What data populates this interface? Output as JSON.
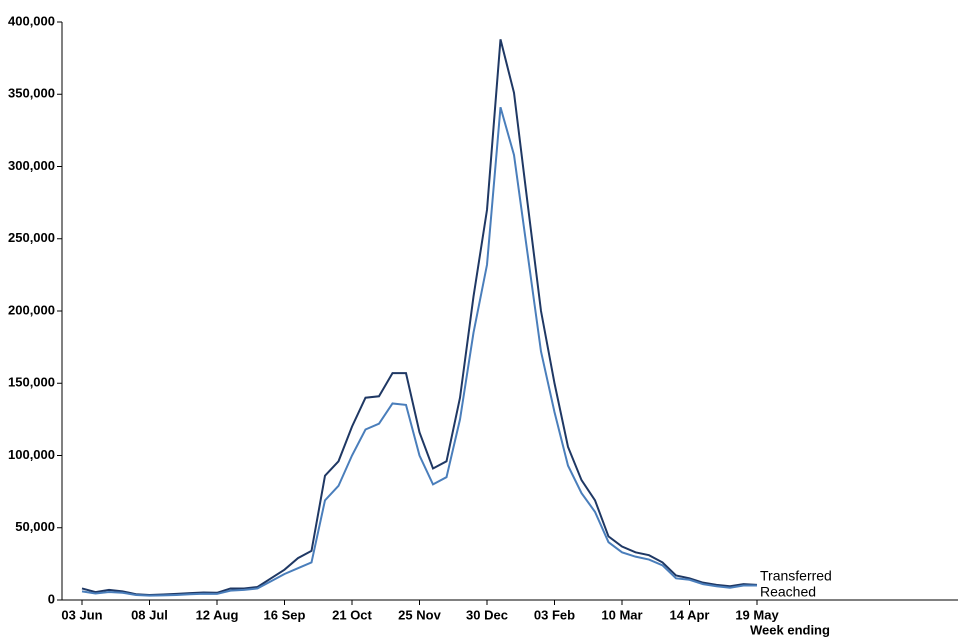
{
  "chart_data": {
    "type": "line",
    "x_label": "Week ending",
    "categories": [
      "03 Jun",
      null,
      null,
      null,
      null,
      "08 Jul",
      null,
      null,
      null,
      null,
      "12 Aug",
      null,
      null,
      null,
      null,
      "16 Sep",
      null,
      null,
      null,
      null,
      "21 Oct",
      null,
      null,
      null,
      null,
      "25 Nov",
      null,
      null,
      null,
      null,
      "30 Dec",
      null,
      null,
      null,
      null,
      "03 Feb",
      null,
      null,
      null,
      null,
      "10 Mar",
      null,
      null,
      null,
      null,
      "14 Apr",
      null,
      null,
      null,
      null,
      "19 May"
    ],
    "series": [
      {
        "name": "Transferred",
        "color": "#1f3864",
        "values": [
          8000,
          5500,
          7000,
          6000,
          4000,
          3500,
          3800,
          4200,
          4800,
          5200,
          5000,
          8000,
          8000,
          9000,
          15000,
          21000,
          29000,
          34000,
          86000,
          96000,
          120000,
          140000,
          141000,
          157000,
          157000,
          116000,
          91000,
          96000,
          140000,
          210000,
          270000,
          388000,
          351000,
          275000,
          200000,
          150000,
          106000,
          83000,
          69000,
          44000,
          37000,
          33000,
          31000,
          26000,
          17000,
          15000,
          12000,
          10500,
          9500,
          11000,
          10500
        ]
      },
      {
        "name": "Reached",
        "color": "#4a7ebb",
        "values": [
          6000,
          4500,
          5500,
          5000,
          3500,
          3000,
          3200,
          3500,
          4000,
          4300,
          4200,
          6500,
          7000,
          8000,
          13000,
          18000,
          22000,
          26000,
          69000,
          79000,
          100000,
          118000,
          122000,
          136000,
          135000,
          100000,
          80000,
          85000,
          125000,
          185000,
          232000,
          341000,
          308000,
          240000,
          172000,
          130000,
          93000,
          74000,
          61000,
          40000,
          33000,
          30000,
          28000,
          24000,
          15000,
          14000,
          11000,
          9500,
          8500,
          10000,
          10000
        ]
      }
    ],
    "ylim": [
      0,
      400000
    ],
    "yticks": [
      0,
      {
        "value": 50000,
        "label": "50,000"
      },
      {
        "value": 100000,
        "label": "100,000"
      },
      {
        "value": 150000,
        "label": "150,000"
      },
      {
        "value": 200000,
        "label": "200,000"
      },
      {
        "value": 250000,
        "label": "250,000"
      },
      {
        "value": 300000,
        "label": "300,000"
      },
      {
        "value": 350000,
        "label": "350,000"
      },
      {
        "value": 400000,
        "label": "400,000"
      }
    ]
  }
}
